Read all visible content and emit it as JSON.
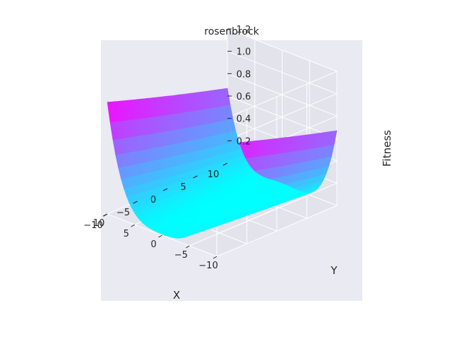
{
  "chart_data": {
    "type": "surface",
    "title": "rosenbrock",
    "xlabel": "X",
    "ylabel": "Y",
    "zlabel": "Fitness",
    "xlim": [
      -10,
      10
    ],
    "ylim": [
      -10,
      10
    ],
    "zlim": [
      0,
      1.2
    ],
    "x_ticks": [
      -10,
      -5,
      0,
      5,
      10
    ],
    "y_ticks": [
      -10,
      -5,
      0,
      5,
      10
    ],
    "z_ticks": [
      0.2,
      0.4,
      0.6,
      0.8,
      1.0,
      1.2
    ],
    "x_tick_labels": [
      "−10",
      "−5",
      "0",
      "5",
      "10"
    ],
    "y_tick_labels": [
      "−10",
      "−5",
      "0",
      "5",
      "10"
    ],
    "z_tick_labels": [
      "0.2",
      "0.4",
      "0.6",
      "0.8",
      "1.0",
      "1.2"
    ],
    "colormap": "cool",
    "background": "#eaeaf2",
    "grid": true
  }
}
